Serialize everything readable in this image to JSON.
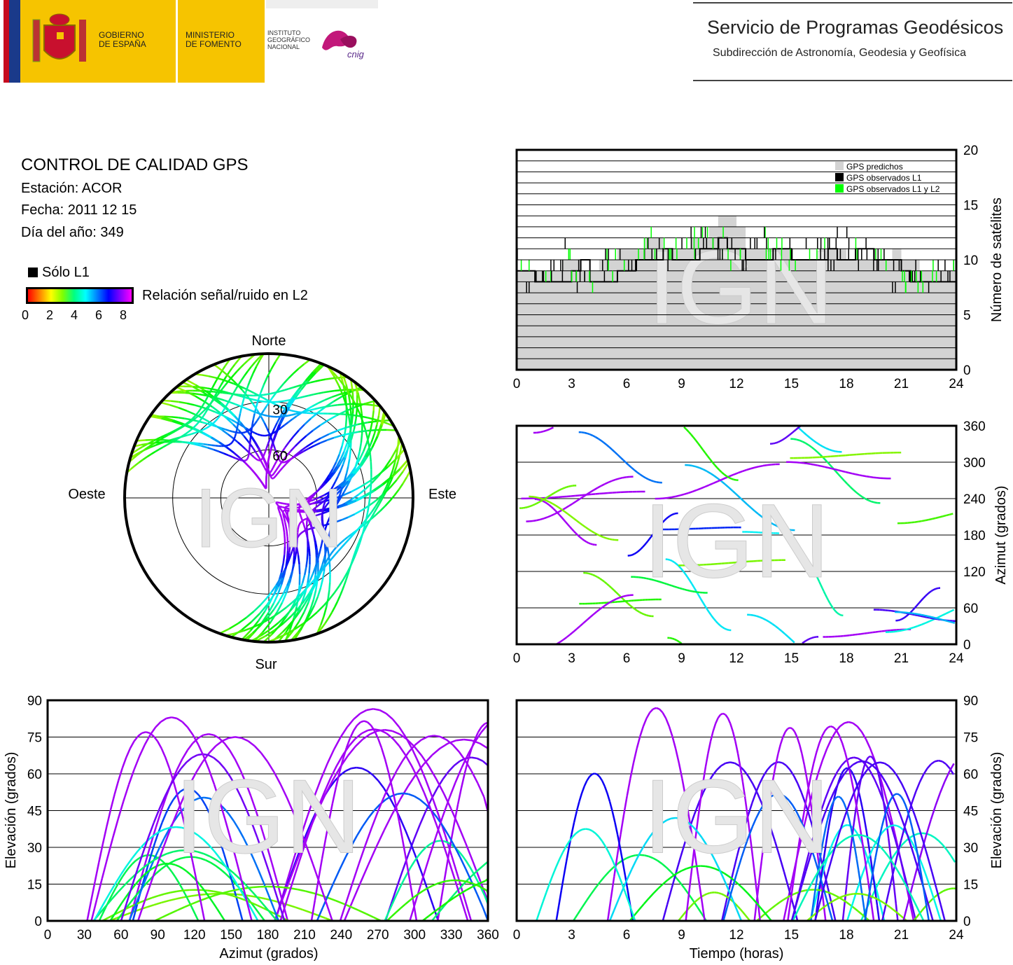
{
  "header": {
    "gobierno_lines": [
      "GOBIERNO",
      "DE ESPAÑA"
    ],
    "ministerio_lines": [
      "MINISTERIO",
      "DE FOMENTO"
    ],
    "instituto_lines": [
      "INSTITUTO",
      "GEOGRÁFICO",
      "NACIONAL"
    ],
    "cnig_logo_text": "cnig",
    "service_title": "Servicio de Programas Geodésicos",
    "service_subtitle": "Subdirección de Astronomía, Geodesia y Geofísica"
  },
  "info": {
    "title": "CONTROL DE CALIDAD GPS",
    "station": "Estación: ACOR",
    "date": "Fecha: 2011 12 15",
    "doy": "Día del año: 349",
    "legend_l1": "Sólo L1",
    "colorbar_label": "Relación señal/ruido en L2",
    "colorbar_ticks": [
      "0",
      "2",
      "4",
      "6",
      "8"
    ]
  },
  "watermark": "IGN",
  "colors": {
    "predicted": "#d3d3d3",
    "observed_l1": "#000000",
    "observed_l1_l2": "#00ff00"
  },
  "chart_data": [
    {
      "id": "sat-count",
      "type": "area",
      "xlim": [
        0,
        24
      ],
      "ylim": [
        0,
        20
      ],
      "xticks": [
        "0",
        "3",
        "6",
        "9",
        "12",
        "15",
        "18",
        "21",
        "24"
      ],
      "yticks": [
        "0",
        "5",
        "10",
        "15",
        "20"
      ],
      "ylabel": "Número de satélites",
      "legend": [
        "GPS predichos",
        "GPS observados L1",
        "GPS observados L1 y L2"
      ],
      "legend_position": "top-right",
      "grid": true,
      "series": [
        {
          "name": "GPS predichos",
          "x": [
            0,
            1,
            2,
            2.5,
            3,
            3.5,
            4,
            4.5,
            5,
            5.5,
            6,
            6.5,
            7,
            7.5,
            8,
            8.5,
            9,
            9.5,
            10,
            10.5,
            11,
            11.5,
            12,
            12.5,
            13,
            13.5,
            14,
            14.5,
            15,
            15.5,
            16,
            16.5,
            17,
            17.5,
            18,
            18.5,
            19,
            19.5,
            20,
            20.5,
            21,
            21.5,
            22,
            22.5,
            23,
            23.5,
            24
          ],
          "y": [
            9,
            9,
            9,
            10,
            10,
            9,
            9,
            10,
            10,
            11,
            11,
            11,
            12,
            12,
            11,
            11,
            11,
            12,
            12,
            13,
            14,
            14,
            13,
            11,
            11,
            11,
            11,
            11,
            10,
            10,
            10,
            11,
            11,
            11,
            10,
            10,
            10,
            10,
            10,
            11,
            10,
            10,
            9,
            9,
            9,
            9,
            9
          ]
        },
        {
          "name": "GPS observados L1 y L2",
          "x": [
            0,
            1,
            2,
            2.5,
            3,
            3.5,
            4,
            4.5,
            5,
            5.5,
            6,
            6.5,
            7,
            7.5,
            8,
            8.5,
            9,
            9.5,
            10,
            10.5,
            11,
            11.5,
            12,
            12.5,
            13,
            13.5,
            14,
            14.5,
            15,
            15.5,
            16,
            16.5,
            17,
            17.5,
            18,
            18.5,
            19,
            19.5,
            20,
            20.5,
            21,
            21.5,
            22,
            22.5,
            23,
            23.5,
            24
          ],
          "y": [
            9,
            8,
            8,
            8,
            9,
            10,
            8,
            8,
            8,
            9,
            9,
            10,
            10,
            10,
            11,
            10,
            10,
            10,
            11,
            11,
            12,
            11,
            11,
            10,
            10,
            10,
            11,
            11,
            10,
            10,
            10,
            10,
            11,
            10,
            10,
            11,
            11,
            10,
            10,
            10,
            9,
            8,
            8,
            8,
            8,
            8,
            9
          ]
        }
      ]
    },
    {
      "id": "sky-plot",
      "type": "scatter",
      "projection": "polar",
      "direction_labels": {
        "north": "Norte",
        "south": "Sur",
        "east": "Este",
        "west": "Oeste"
      },
      "ring_labels": [
        "30",
        "60"
      ]
    },
    {
      "id": "azimuth-time",
      "type": "scatter",
      "xlim": [
        0,
        24
      ],
      "ylim": [
        0,
        360
      ],
      "xticks": [
        "0",
        "3",
        "6",
        "9",
        "12",
        "15",
        "18",
        "21",
        "24"
      ],
      "yticks": [
        "0",
        "60",
        "120",
        "180",
        "240",
        "300",
        "360"
      ],
      "ylabel": "Azimut (grados)",
      "grid": true
    },
    {
      "id": "elev-azimuth",
      "type": "scatter",
      "xlim": [
        0,
        360
      ],
      "ylim": [
        0,
        90
      ],
      "xticks": [
        "0",
        "30",
        "60",
        "90",
        "120",
        "150",
        "180",
        "210",
        "240",
        "270",
        "300",
        "330",
        "360"
      ],
      "yticks": [
        "0",
        "15",
        "30",
        "45",
        "60",
        "75",
        "90"
      ],
      "xlabel": "Azimut (grados)",
      "ylabel": "Elevación (grados)",
      "grid": true
    },
    {
      "id": "elev-time",
      "type": "scatter",
      "xlim": [
        0,
        24
      ],
      "ylim": [
        0,
        90
      ],
      "xticks": [
        "0",
        "3",
        "6",
        "9",
        "12",
        "15",
        "18",
        "21",
        "24"
      ],
      "yticks": [
        "0",
        "15",
        "30",
        "45",
        "60",
        "75",
        "90"
      ],
      "xlabel": "Tiempo (horas)",
      "ylabel": "Elevación (grados)",
      "grid": true
    }
  ]
}
